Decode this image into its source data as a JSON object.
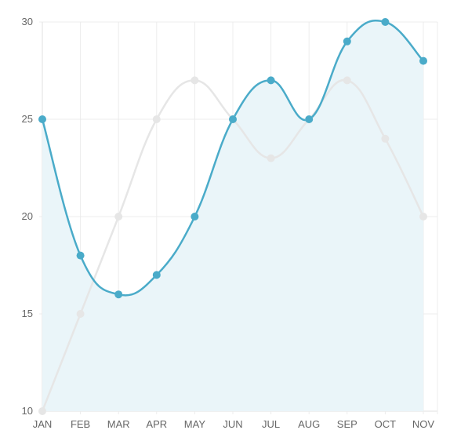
{
  "chart_data": {
    "type": "line",
    "categories": [
      "JAN",
      "FEB",
      "MAR",
      "APR",
      "MAY",
      "JUN",
      "JUL",
      "AUG",
      "SEP",
      "OCT",
      "NOV"
    ],
    "ylim": [
      10,
      30
    ],
    "yticks": [
      10,
      15,
      20,
      25,
      30
    ],
    "grid": true,
    "legend": "none",
    "series": [
      {
        "values": [
          10,
          15,
          20,
          25,
          27,
          25,
          23,
          25,
          27,
          24,
          20
        ],
        "color": "#e6e6e6",
        "fill": false
      },
      {
        "values": [
          25,
          18,
          16,
          17,
          20,
          25,
          27,
          25,
          29,
          30,
          28
        ],
        "color": "#4aabc9",
        "fill": true,
        "fill_color": "#eaf5f9"
      }
    ]
  }
}
